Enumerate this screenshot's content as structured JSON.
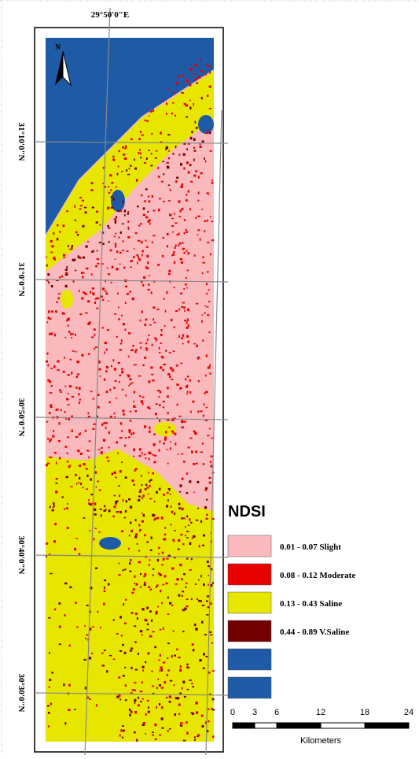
{
  "map": {
    "top_label": "29°50'0\"E",
    "lat_labels": [
      "31°10'0\"N",
      "31°0'0\"N",
      "30°50'0\"N",
      "30°40'0\"N",
      "30°30'0\"N"
    ],
    "north": "N",
    "legend": {
      "title": "NDSI",
      "items": [
        {
          "label": "0.01 - 0.07 Slight",
          "color": "#f9b9bd"
        },
        {
          "label": "0.08 - 0.12 Moderate",
          "color": "#e60000"
        },
        {
          "label": "0.13 - 0.43 Saline",
          "color": "#e6e600"
        },
        {
          "label": "0.44 - 0.89 V.Saline",
          "color": "#730000"
        },
        {
          "color": "#1f5aa6"
        },
        {
          "color": "#1f5aa6"
        }
      ]
    },
    "scale_bar": {
      "ticks": [
        0,
        3,
        6,
        12,
        18,
        24
      ],
      "unit": "Kilometers"
    }
  }
}
